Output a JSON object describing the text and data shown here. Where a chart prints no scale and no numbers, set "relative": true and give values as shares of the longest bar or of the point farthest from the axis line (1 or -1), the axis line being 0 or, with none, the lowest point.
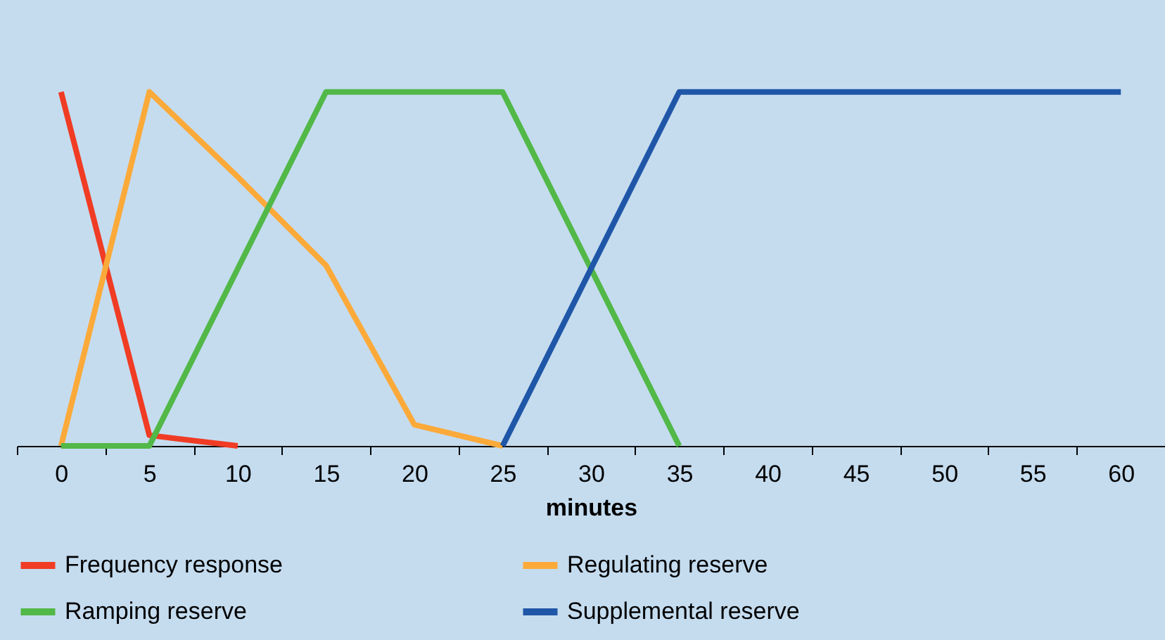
{
  "chart_data": {
    "type": "line",
    "xlabel": "minutes",
    "relative": true,
    "categories": [
      "0",
      "5",
      "10",
      "15",
      "20",
      "25",
      "30",
      "35",
      "40",
      "45",
      "50",
      "55",
      "60"
    ],
    "series": [
      {
        "name": "Frequency response",
        "color": "#f03c24",
        "values": [
          1,
          0.03,
          0,
          null,
          null,
          null,
          null,
          null,
          null,
          null,
          null,
          null,
          null
        ]
      },
      {
        "name": "Regulating reserve",
        "color": "#fbaa3a",
        "values": [
          0,
          1,
          0.76,
          0.51,
          0.06,
          0,
          null,
          null,
          null,
          null,
          null,
          null,
          null
        ]
      },
      {
        "name": "Ramping reserve",
        "color": "#52b848",
        "values": [
          0,
          0,
          0.5,
          1,
          1,
          1,
          0.5,
          0,
          null,
          null,
          null,
          null,
          null
        ]
      },
      {
        "name": "Supplemental reserve",
        "color": "#1f56a7",
        "values": [
          null,
          null,
          null,
          null,
          null,
          0,
          0.5,
          1,
          1,
          1,
          1,
          1,
          1
        ]
      }
    ],
    "legend": "bottom",
    "line_style": "solid",
    "marker": "none"
  }
}
